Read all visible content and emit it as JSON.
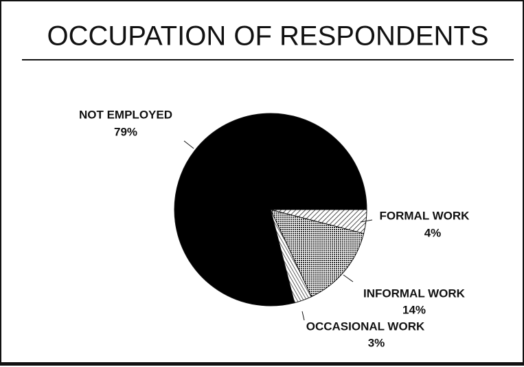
{
  "chart_data": {
    "type": "pie",
    "title": "OCCUPATION OF RESPONDENTS",
    "categories": [
      "FORMAL WORK",
      "INFORMAL WORK",
      "OCCASIONAL WORK",
      "NOT EMPLOYED"
    ],
    "values": [
      4,
      14,
      3,
      79
    ],
    "value_labels": [
      "4%",
      "14%",
      "3%",
      "79%"
    ]
  }
}
